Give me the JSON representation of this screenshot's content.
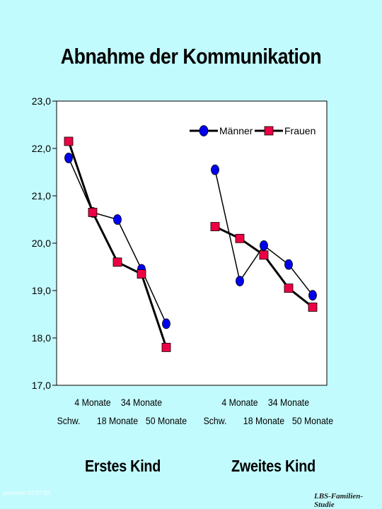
{
  "title": "Abnahme der Kommunikation",
  "footer_left": "gesendet 02.07.09",
  "footer_right": "LBS-Familien-Studie",
  "chart_data": {
    "type": "line",
    "ylim": [
      17.0,
      23.0
    ],
    "yticks": [
      "17,0",
      "18,0",
      "19,0",
      "20,0",
      "21,0",
      "22,0",
      "23,0"
    ],
    "categories": [
      "Schw.",
      "4 Monate",
      "18 Monate",
      "34 Monate",
      "50 Monate"
    ],
    "groups": [
      {
        "label": "Erstes Kind",
        "series": [
          {
            "name": "Männer",
            "values": [
              21.8,
              20.65,
              20.5,
              19.45,
              18.3
            ]
          },
          {
            "name": "Frauen",
            "values": [
              22.15,
              20.65,
              19.6,
              19.35,
              17.8
            ]
          }
        ]
      },
      {
        "label": "Zweites Kind",
        "series": [
          {
            "name": "Männer",
            "values": [
              21.55,
              19.2,
              19.95,
              19.55,
              18.9
            ]
          },
          {
            "name": "Frauen",
            "values": [
              20.35,
              20.1,
              19.75,
              19.05,
              18.65
            ]
          }
        ]
      }
    ],
    "legend": [
      "Männer",
      "Frauen"
    ],
    "legend_position": "top-right",
    "colors": {
      "maenner": "#0000ee",
      "frauen": "#ee0044",
      "line": "#000000",
      "plot_bg": "#ffffff"
    },
    "grid": false
  }
}
